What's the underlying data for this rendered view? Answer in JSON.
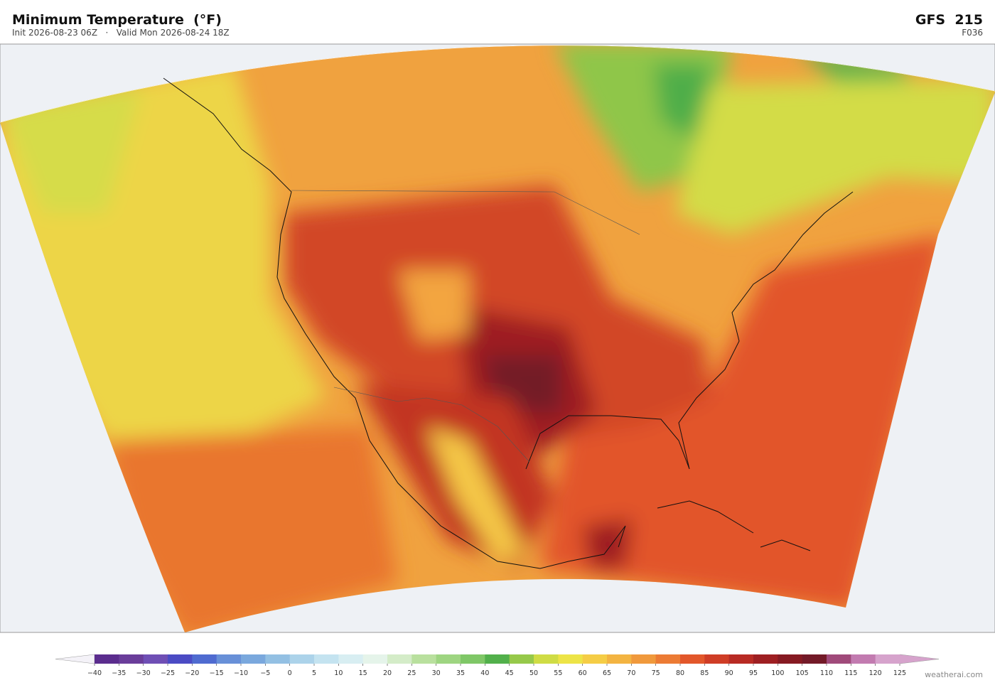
{
  "header": {
    "title": "Minimum Temperature  (°F)",
    "subtitle": "Init 2026-08-23 06Z   ·   Valid Mon 2026-08-24 18Z",
    "model": "GFS  215",
    "forecast": "F036"
  },
  "colorbar": {
    "ticks": [
      {
        "value": -40,
        "label": "−40"
      },
      {
        "value": -35,
        "label": "−35"
      },
      {
        "value": -30,
        "label": "−30"
      },
      {
        "value": -25,
        "label": "−25"
      },
      {
        "value": -20,
        "label": "−20"
      },
      {
        "value": -15,
        "label": "−15"
      },
      {
        "value": -10,
        "label": "−10"
      },
      {
        "value": -5,
        "label": "−5"
      },
      0,
      5,
      10,
      15,
      20,
      25,
      30,
      35,
      40,
      45,
      50,
      55,
      60,
      65,
      70,
      75,
      80,
      85,
      90,
      95,
      100,
      105,
      110,
      115,
      120,
      125
    ],
    "colors": [
      "#5b2d8e",
      "#6a3d9a",
      "#6f4fb5",
      "#4b4bc4",
      "#4f6bd0",
      "#6890d8",
      "#7aa8dd",
      "#93c0e3",
      "#acd3ea",
      "#c4e3f0",
      "#d8eef2",
      "#e5f4ea",
      "#d4ecc8",
      "#b9e09e",
      "#9ed581",
      "#7fc767",
      "#52b04b",
      "#96c94a",
      "#cfdc45",
      "#ede447",
      "#f5cd46",
      "#f3b442",
      "#f0993c",
      "#ec7b34",
      "#e2572b",
      "#cf3d26",
      "#b82b24",
      "#9e1f22",
      "#861a22",
      "#731a28",
      "#a04a7a",
      "#c27bb0",
      "#d6a3cc"
    ],
    "under_color": "#f4f2f8",
    "over_color": "#d6a3cc"
  },
  "footer": {
    "credit": "weatherai.com"
  }
}
